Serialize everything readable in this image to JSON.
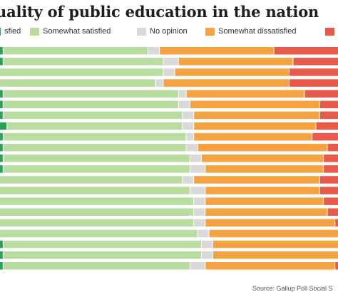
{
  "title": "uality of public education in the nation",
  "source": "Source: Gallup Poll Social S",
  "colors": {
    "very_satisfied": "#2e9e5b",
    "somewhat_satisfied": "#b9dca0",
    "no_opinion": "#d9d9d9",
    "somewhat_dissatisfied": "#f4a340",
    "very_dissatisfied": "#e85a4a"
  },
  "legend": [
    {
      "key": "very_satisfied",
      "label": "sfied"
    },
    {
      "key": "somewhat_satisfied",
      "label": "Somewhat satisfied"
    },
    {
      "key": "no_opinion",
      "label": "No opinion"
    },
    {
      "key": "somewhat_dissatisfied",
      "label": "Somewhat dissatisfied"
    },
    {
      "key": "very_dissatisfied",
      "label": "V"
    }
  ],
  "chart_data": {
    "type": "bar",
    "orientation": "horizontal",
    "stacked": true,
    "series": [
      {
        "key": "very_satisfied",
        "values": [
          5,
          5,
          4,
          4,
          5,
          5,
          5,
          6,
          5,
          5,
          5,
          5,
          4,
          4,
          4,
          4,
          4,
          4,
          5,
          5,
          5
        ]
      },
      {
        "key": "somewhat_satisfied",
        "values": [
          38,
          42,
          43,
          41,
          46,
          46,
          47,
          46,
          48,
          48,
          49,
          49,
          48,
          50,
          51,
          51,
          51,
          52,
          52,
          52,
          49
        ]
      },
      {
        "key": "no_opinion",
        "values": [
          3,
          4,
          3,
          2,
          2,
          3,
          3,
          3,
          2,
          3,
          3,
          4,
          3,
          4,
          3,
          3,
          3,
          3,
          3,
          3,
          4
        ]
      },
      {
        "key": "somewhat_dissatisfied",
        "values": [
          30,
          30,
          30,
          33,
          31,
          34,
          33,
          32,
          31,
          34,
          32,
          31,
          33,
          30,
          31,
          32,
          34,
          34,
          33,
          33,
          34
        ]
      },
      {
        "key": "very_dissatisfied",
        "values": [
          24,
          19,
          20,
          20,
          16,
          12,
          12,
          13,
          14,
          10,
          11,
          11,
          12,
          12,
          11,
          10,
          8,
          7,
          7,
          7,
          8
        ]
      }
    ]
  }
}
